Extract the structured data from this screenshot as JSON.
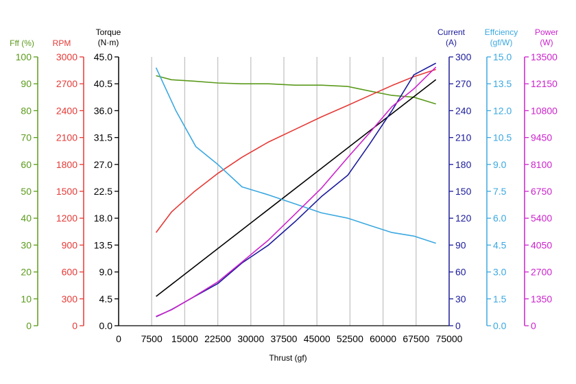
{
  "chart_data": {
    "type": "line",
    "title": "",
    "xlabel": "Thrust (gf)",
    "x_ticks": [
      "0",
      "7500",
      "15000",
      "22500",
      "30000",
      "37500",
      "45000",
      "52500",
      "60000",
      "67500",
      "75000"
    ],
    "xlim": [
      0,
      75000
    ],
    "grid": "vertical",
    "axes": [
      {
        "id": "fff",
        "title": "Fff (%)",
        "color": "#5a9a1a",
        "min": 0,
        "max": 100,
        "ticks": [
          "0",
          "10",
          "20",
          "30",
          "40",
          "50",
          "60",
          "70",
          "80",
          "90",
          "100"
        ]
      },
      {
        "id": "rpm",
        "title": "RPM",
        "color": "#e53935",
        "min": 0,
        "max": 3000,
        "ticks": [
          "0",
          "300",
          "600",
          "900",
          "1200",
          "1500",
          "1800",
          "2100",
          "2400",
          "2700",
          "3000"
        ]
      },
      {
        "id": "torque",
        "title_lines": [
          "Torque",
          "(N·m)"
        ],
        "color": "#000000",
        "min": 0,
        "max": 45,
        "ticks": [
          "0.0",
          "4.5",
          "9.0",
          "13.5",
          "18.0",
          "22.5",
          "27.0",
          "31.5",
          "36.0",
          "40.5",
          "45.0"
        ]
      },
      {
        "id": "current",
        "title_lines": [
          "Current",
          "(A)"
        ],
        "color": "#1a1a9c",
        "min": 0,
        "max": 300,
        "ticks": [
          "0",
          "30",
          "60",
          "90",
          "120",
          "150",
          "180",
          "210",
          "240",
          "270",
          "300"
        ]
      },
      {
        "id": "efficiency",
        "title_lines": [
          "Effciency",
          "(gf/W)"
        ],
        "color": "#3aa8e0",
        "min": 0,
        "max": 15,
        "ticks": [
          "0.0",
          "1.5",
          "3.0",
          "4.5",
          "6.0",
          "7.5",
          "9.0",
          "10.5",
          "12.0",
          "13.5",
          "15.0"
        ]
      },
      {
        "id": "power",
        "title_lines": [
          "Power",
          "(W)"
        ],
        "color": "#cc22cc",
        "min": 0,
        "max": 13500,
        "ticks": [
          "0",
          "1350",
          "2700",
          "4050",
          "5400",
          "6750",
          "8100",
          "9450",
          "10800",
          "12150",
          "13500"
        ]
      }
    ],
    "series": [
      {
        "axis": "fff",
        "color": "#5a9a1a",
        "x": [
          8500,
          12000,
          17000,
          22500,
          28000,
          34000,
          40000,
          46000,
          52000,
          57000,
          62000,
          67000,
          72000
        ],
        "y": [
          93,
          91.5,
          91,
          90.3,
          90,
          90,
          89.5,
          89.5,
          89,
          87.3,
          85.7,
          85,
          82.5
        ]
      },
      {
        "axis": "rpm",
        "color": "#e53935",
        "x": [
          8500,
          12000,
          17000,
          22500,
          28000,
          34000,
          40000,
          46000,
          52000,
          57000,
          62000,
          67000,
          72000
        ],
        "y": [
          1040,
          1270,
          1490,
          1700,
          1880,
          2050,
          2190,
          2330,
          2460,
          2570,
          2680,
          2780,
          2860
        ]
      },
      {
        "axis": "torque",
        "color": "#000000",
        "x": [
          8500,
          72000
        ],
        "y": [
          4.9,
          41.2
        ]
      },
      {
        "axis": "current",
        "color": "#1a1a9c",
        "x": [
          8500,
          12000,
          17000,
          22500,
          28000,
          34000,
          40000,
          46000,
          52000,
          57000,
          62000,
          67000,
          72000
        ],
        "y": [
          10,
          18,
          32,
          47,
          70,
          90,
          116,
          144,
          168,
          203,
          240,
          280,
          293
        ]
      },
      {
        "axis": "efficiency",
        "color": "#3aa8e0",
        "x": [
          8500,
          13000,
          17500,
          22500,
          28000,
          34000,
          40000,
          46000,
          52000,
          57000,
          62000,
          67000,
          72000
        ],
        "y": [
          14.4,
          12.0,
          10.0,
          9.0,
          7.75,
          7.3,
          6.8,
          6.3,
          6.0,
          5.6,
          5.2,
          5.0,
          4.6
        ]
      },
      {
        "axis": "power",
        "color": "#cc22cc",
        "x": [
          8500,
          12000,
          17000,
          22500,
          28000,
          34000,
          40000,
          46000,
          52000,
          57000,
          62000,
          67000,
          72000
        ],
        "y": [
          470,
          800,
          1450,
          2200,
          3200,
          4300,
          5600,
          6900,
          8450,
          9700,
          11000,
          11900,
          12990
        ]
      }
    ]
  }
}
